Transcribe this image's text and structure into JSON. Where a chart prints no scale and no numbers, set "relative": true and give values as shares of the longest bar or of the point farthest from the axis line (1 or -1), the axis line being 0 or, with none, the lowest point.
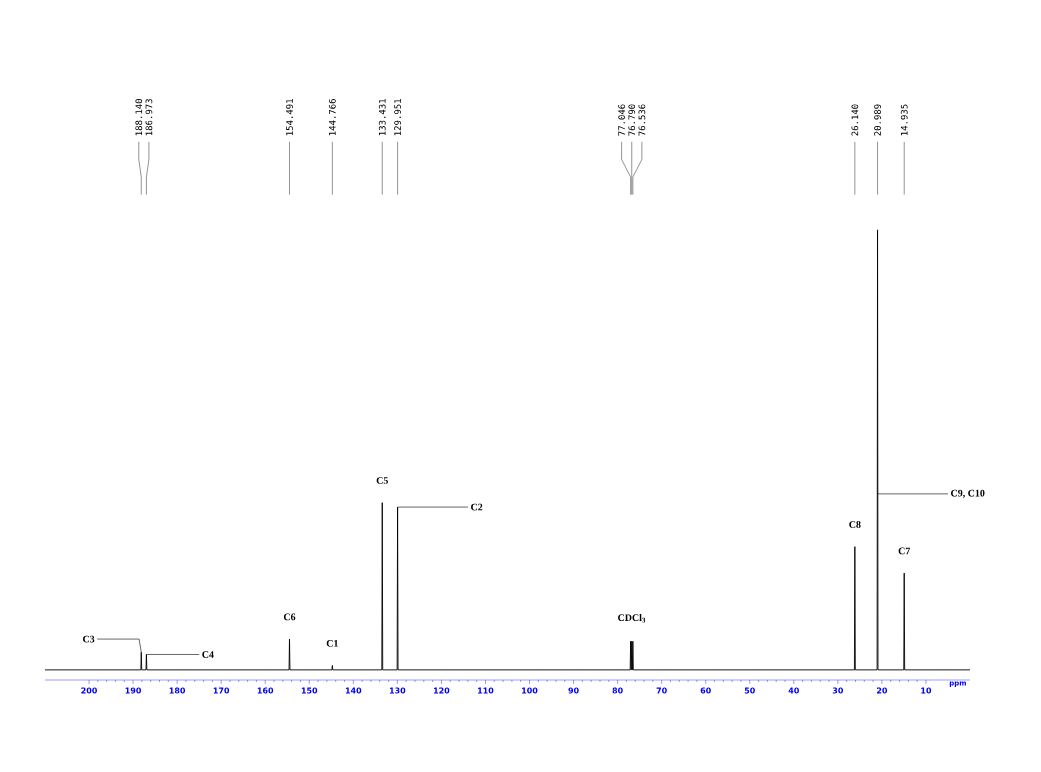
{
  "chart_data": {
    "type": "line",
    "relative": true,
    "xlabel": "ppm",
    "xlim": [
      210,
      0
    ],
    "xticks": [
      200,
      190,
      180,
      170,
      160,
      150,
      140,
      130,
      120,
      110,
      100,
      90,
      80,
      70,
      60,
      50,
      40,
      30,
      20,
      10
    ],
    "series": [
      {
        "color": "#000000",
        "x": [
          210,
          188.24,
          188.14,
          188.04,
          187.073,
          186.973,
          186.873,
          154.591,
          154.491,
          154.391,
          144.866,
          144.766,
          144.666,
          133.531,
          133.431,
          133.331,
          130.051,
          129.951,
          129.851,
          77.146,
          77.046,
          76.946,
          76.89,
          76.79,
          76.69,
          76.636,
          76.536,
          76.436,
          26.24,
          26.14,
          26.04,
          21.089,
          20.989,
          20.889,
          15.035,
          14.935,
          14.835,
          0
        ],
        "values": [
          0,
          0,
          0.04,
          0,
          0,
          0.035,
          0,
          0,
          0.07,
          0,
          0,
          0.01,
          0,
          0,
          0.38,
          0,
          0,
          0.37,
          0,
          0,
          0.065,
          0,
          0,
          0.065,
          0,
          0,
          0.065,
          0,
          0,
          0.28,
          0,
          0,
          1,
          0,
          0,
          0.22,
          0,
          0
        ]
      }
    ],
    "annotations": [
      {
        "text": "188.140",
        "x": 188.14
      },
      {
        "text": "186.973",
        "x": 186.973
      },
      {
        "text": "154.491",
        "x": 154.491
      },
      {
        "text": "144.766",
        "x": 144.766
      },
      {
        "text": "133.431",
        "x": 133.431
      },
      {
        "text": "129.951",
        "x": 129.951
      },
      {
        "text": "77.046",
        "x": 77.046
      },
      {
        "text": "76.790",
        "x": 76.79
      },
      {
        "text": "76.536",
        "x": 76.536
      },
      {
        "text": "26.140",
        "x": 26.14
      },
      {
        "text": "20.989",
        "x": 20.989
      },
      {
        "text": "14.935",
        "x": 14.935
      },
      {
        "text": "C3",
        "x": 188.14,
        "y": 0.04
      },
      {
        "text": "C4",
        "x": 186.973,
        "y": 0.035
      },
      {
        "text": "C6",
        "x": 154.491,
        "y": 0.07
      },
      {
        "text": "C1",
        "x": 144.766,
        "y": 0.01
      },
      {
        "text": "C5",
        "x": 133.431,
        "y": 0.38
      },
      {
        "text": "C2",
        "x": 129.951,
        "y": 0.37
      },
      {
        "text": "CDCl$_{3}$",
        "x": 76.79,
        "y": 0.065
      },
      {
        "text": "C8",
        "x": 26.14,
        "y": 0.28
      },
      {
        "text": "C9, C10",
        "x": 20.989,
        "y": 0.4
      },
      {
        "text": "C7",
        "x": 14.935,
        "y": 0.22
      }
    ]
  }
}
